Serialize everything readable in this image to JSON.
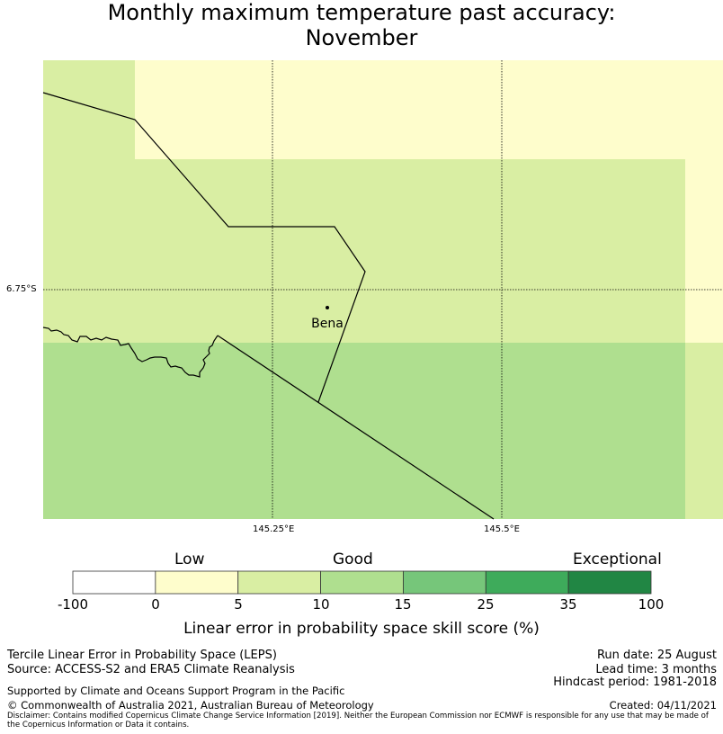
{
  "title": {
    "line1": "Monthly maximum temperature past accuracy:",
    "line2": "November"
  },
  "map": {
    "place_label": "Bena",
    "lat_label": "6.75°S",
    "lon_labels": [
      "145.25°E",
      "145.5°E"
    ],
    "colors": {
      "low": "#fefdcc",
      "good_low": "#d9eea3",
      "good_high": "#afdf8f",
      "border": "#000000"
    },
    "cells": [
      {
        "class": "good_low",
        "label": "5-10"
      },
      {
        "class": "low",
        "label": "0-5"
      },
      {
        "class": "good_high",
        "label": "10-15"
      }
    ]
  },
  "colorbar": {
    "categories": [
      "Low",
      "Good",
      "Exceptional"
    ],
    "ticks": [
      "-100",
      "0",
      "5",
      "10",
      "15",
      "25",
      "35",
      "100"
    ],
    "colors": [
      "#ffffff",
      "#fefdcc",
      "#d9eea3",
      "#afdf8f",
      "#76c67a",
      "#3eab5b",
      "#218644"
    ],
    "title": "Linear error in probability space skill score (%)"
  },
  "footer": {
    "left1": "Tercile Linear Error in Probability Space (LEPS)",
    "left2": "Source: ACCESS-S2 and ERA5 Climate Reanalysis",
    "support": "Supported by Climate and Oceans Support Program in the Pacific",
    "copyright": "© Commonwealth of Australia 2021, Australian Bureau of Meteorology",
    "run_date": "Run date: 25 August",
    "lead_time": "Lead time: 3 months",
    "hindcast": "Hindcast period: 1981-2018",
    "created": "Created: 04/11/2021",
    "disclaimer": "Disclaimer: Contains modified Copernicus Climate Change Service Information [2019]. Neither the European Commission nor ECMWF is responsible for any use that may be made of the Copernicus Information or Data it contains."
  }
}
